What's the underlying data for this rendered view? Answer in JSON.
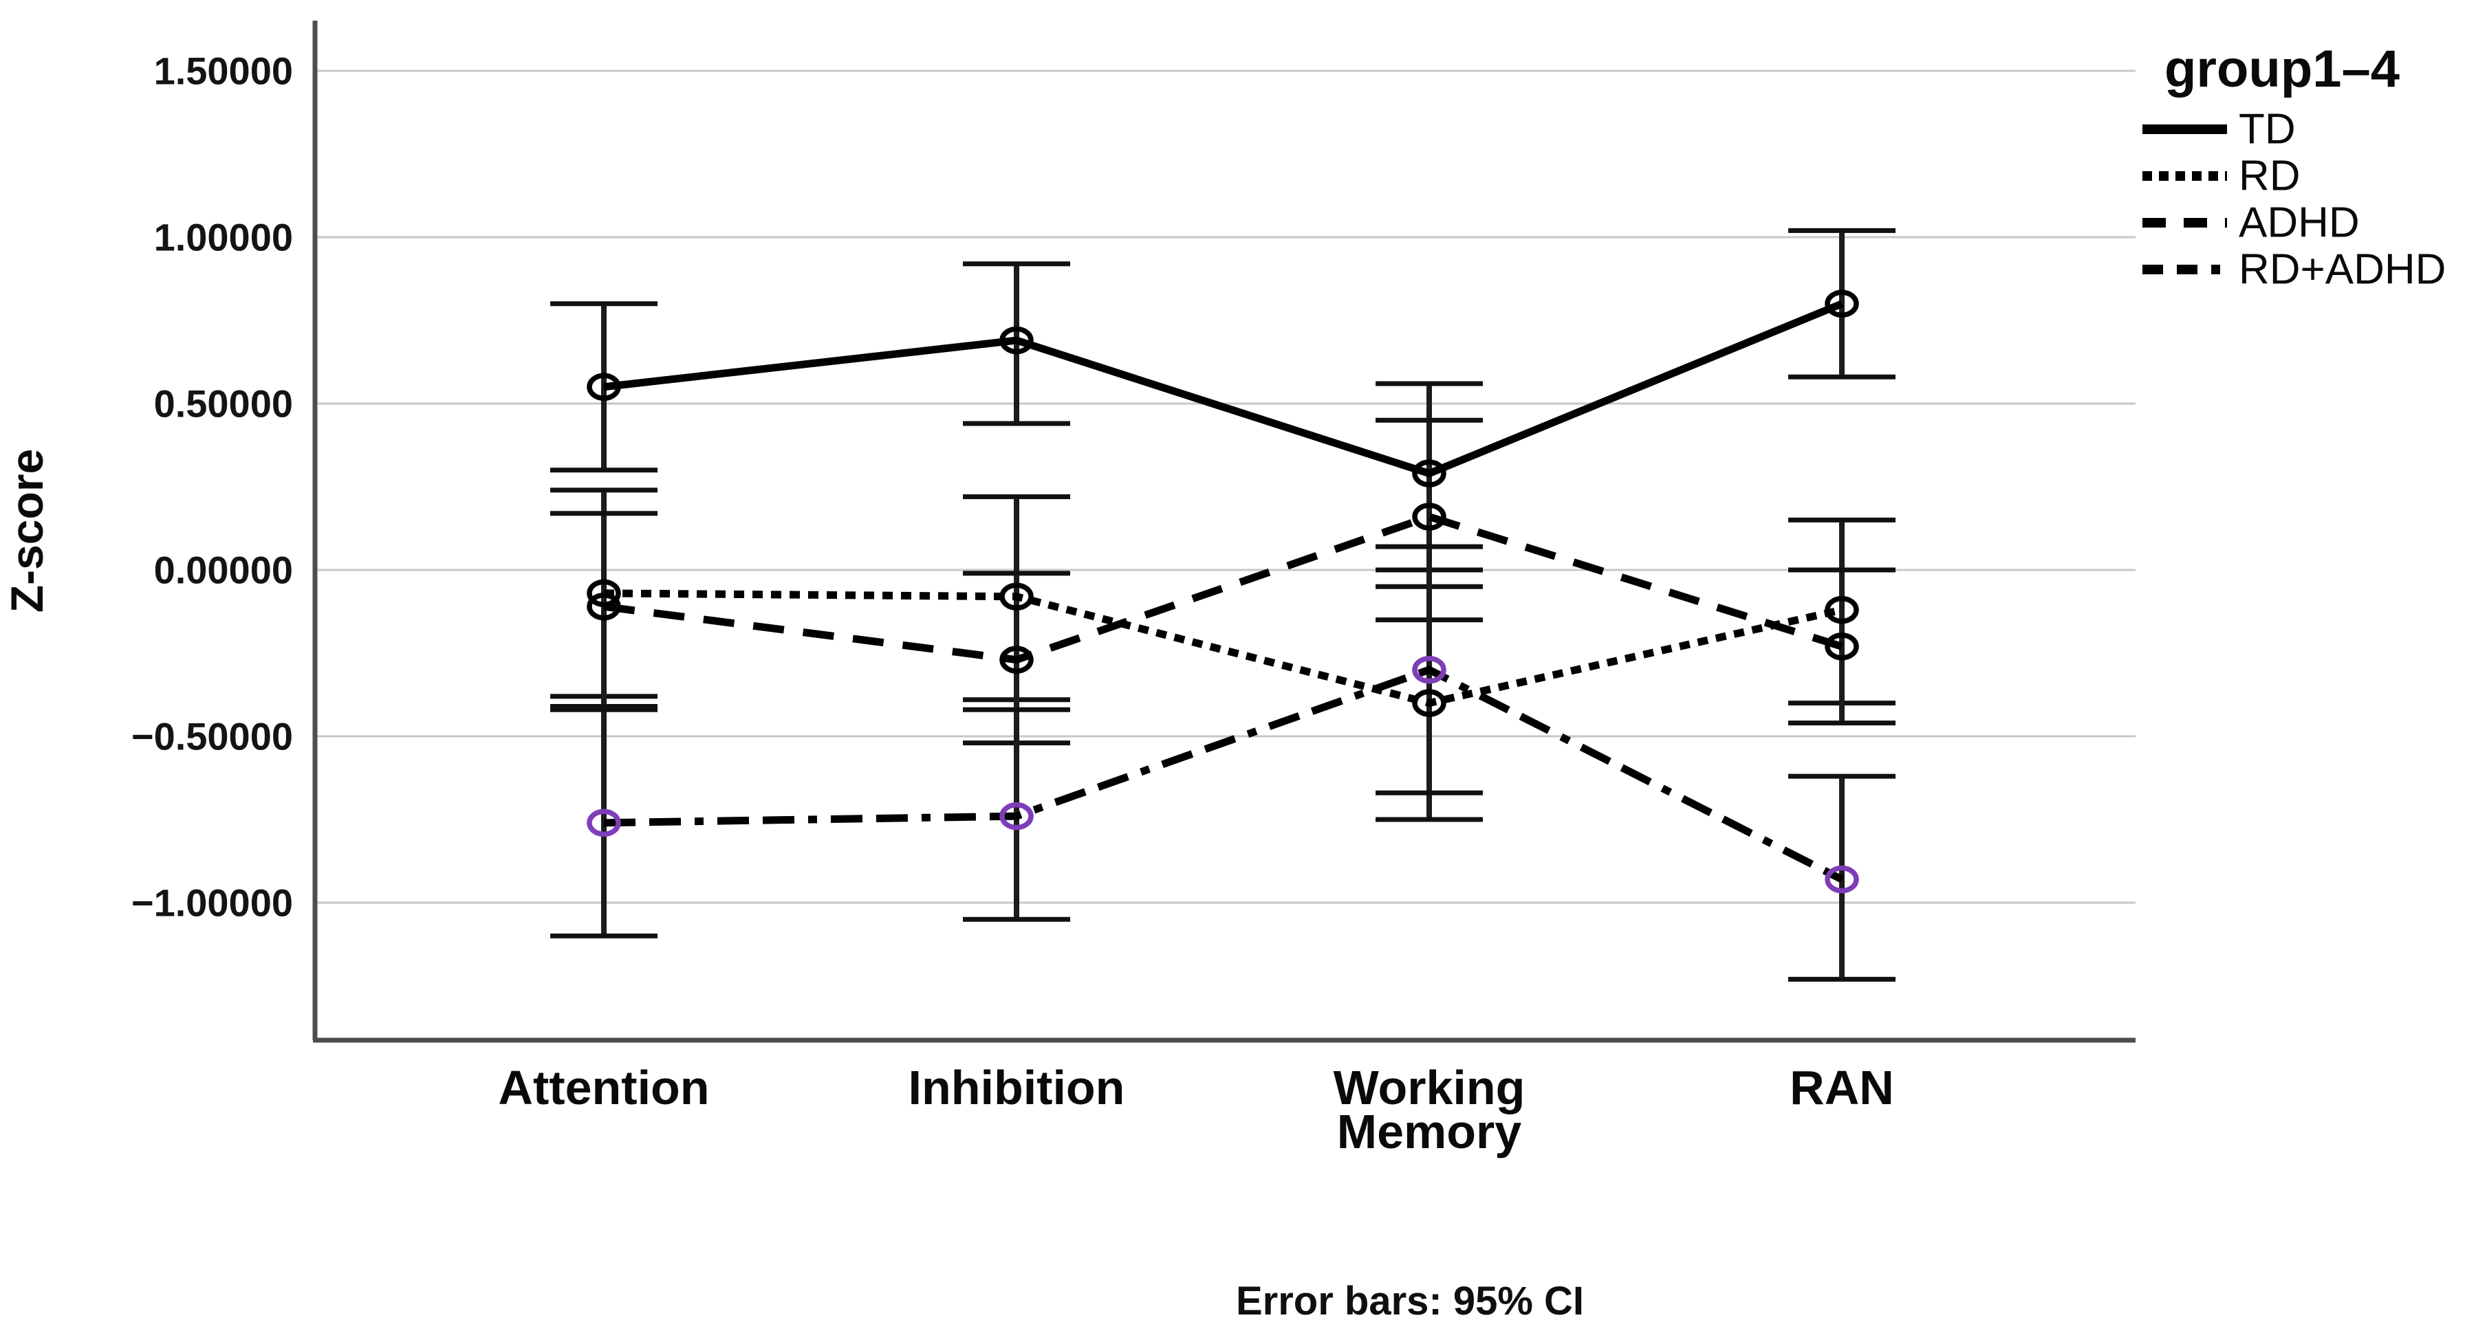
{
  "page": {
    "background": "#ffffff"
  },
  "chart_data": {
    "type": "line",
    "title": "",
    "xlabel": "",
    "ylabel": "Z-score",
    "legend_title": "group1–4",
    "legend_position": "top-right",
    "caption": "Error bars: 95% CI",
    "error_bars": "95% CI",
    "grid": true,
    "gridline_color": "#c7c7c7",
    "axis_color": "#4d4d4d",
    "categories": [
      "Attention",
      "Inhibition",
      "Working Memory",
      "RAN"
    ],
    "y_axis": {
      "min": -1.4,
      "max": 1.66,
      "tick_step": 0.5,
      "ticks": [
        {
          "label": "1.50000",
          "value": 1.5
        },
        {
          "label": "1.00000",
          "value": 1.0
        },
        {
          "label": "0.50000",
          "value": 0.5
        },
        {
          "label": "0.00000",
          "value": 0.0
        },
        {
          "label": "−0.50000",
          "value": -0.5
        },
        {
          "label": "−1.00000",
          "value": -1.0
        }
      ]
    },
    "series": [
      {
        "name": "TD",
        "line_style": "solid",
        "color": "#000000",
        "marker": "open-circle",
        "marker_color": "#000000",
        "means": [
          0.55,
          0.69,
          0.29,
          0.8
        ],
        "ci_low": [
          0.3,
          0.44,
          0.0,
          0.58
        ],
        "ci_high": [
          0.8,
          0.92,
          0.56,
          1.02
        ]
      },
      {
        "name": "RD",
        "line_style": "dotted",
        "color": "#000000",
        "marker": "open-circle",
        "marker_color": "#000000",
        "means": [
          -0.07,
          -0.08,
          -0.4,
          -0.12
        ],
        "ci_low": [
          -0.38,
          -0.39,
          -0.75,
          -0.4
        ],
        "ci_high": [
          0.24,
          0.22,
          -0.05,
          0.15
        ]
      },
      {
        "name": "ADHD",
        "line_style": "dashed",
        "color": "#000000",
        "marker": "open-circle",
        "marker_color": "#000000",
        "means": [
          -0.11,
          -0.27,
          0.16,
          -0.23
        ],
        "ci_low": [
          -0.41,
          -0.52,
          -0.15,
          -0.46
        ],
        "ci_high": [
          0.17,
          -0.01,
          0.45,
          0.0
        ]
      },
      {
        "name": "RD+ADHD",
        "line_style": "dash-dash-dot",
        "color": "#000000",
        "marker": "open-circle",
        "marker_color": "#7D3EB7",
        "means": [
          -0.76,
          -0.74,
          -0.3,
          -0.93
        ],
        "ci_low": [
          -1.1,
          -1.05,
          -0.67,
          -1.23
        ],
        "ci_high": [
          -0.42,
          -0.42,
          0.07,
          -0.62
        ]
      }
    ]
  }
}
